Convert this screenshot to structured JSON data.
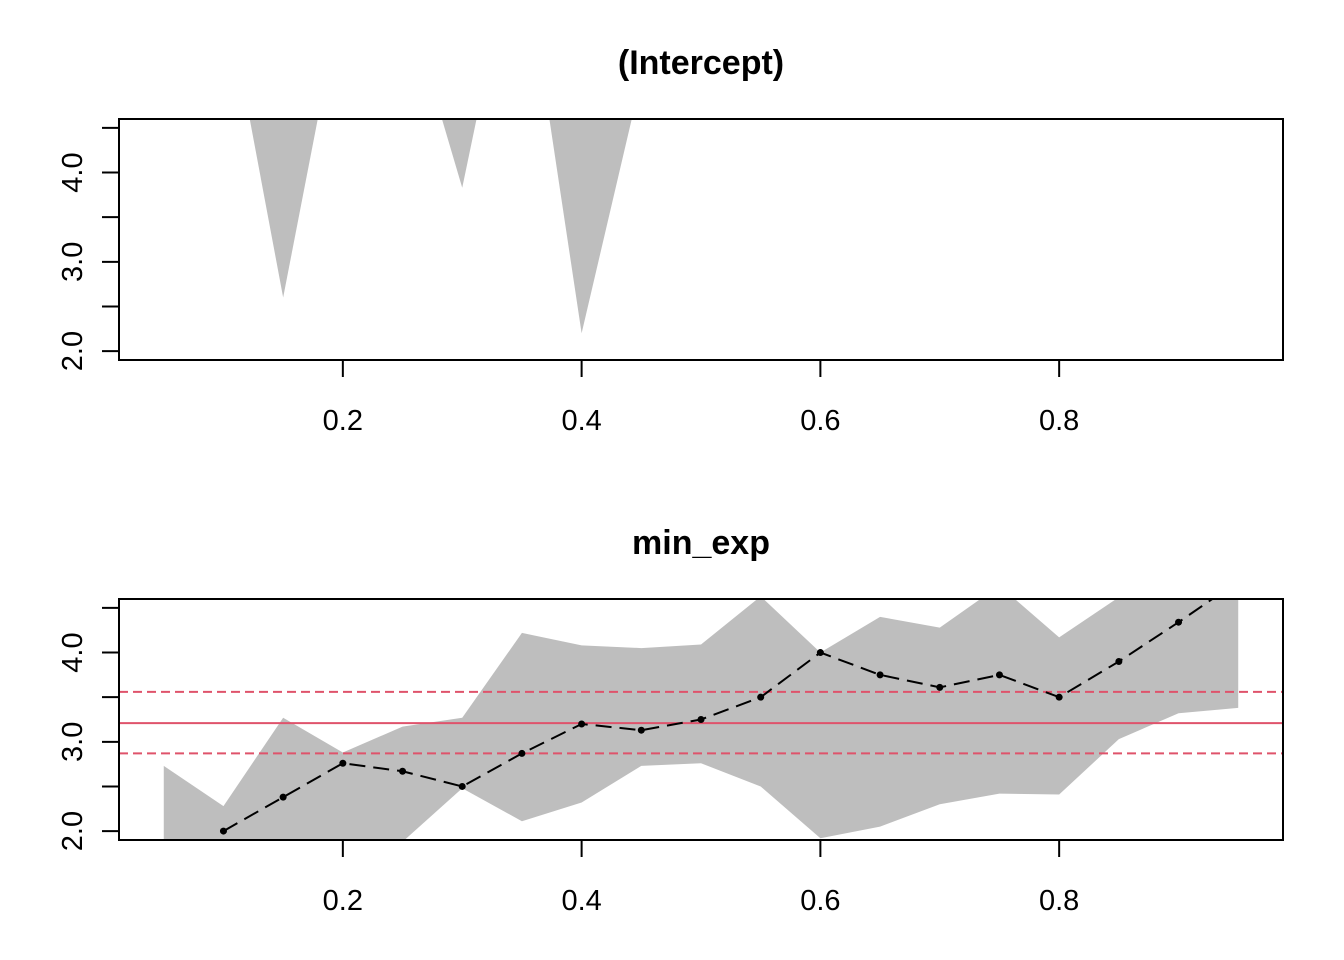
{
  "chart_data": [
    {
      "type": "area",
      "title": "(Intercept)",
      "xlabel": "",
      "ylabel": "",
      "xlim": [
        0.0125,
        0.9875
      ],
      "ylim": [
        1.9,
        4.6
      ],
      "x_ticks": [
        0.2,
        0.4,
        0.6,
        0.8
      ],
      "x_tick_labels": [
        "0.2",
        "0.4",
        "0.6",
        "0.8"
      ],
      "y_ticks": [
        2.0,
        2.5,
        3.0,
        3.5,
        4.0,
        4.5
      ],
      "y_tick_labels": [
        "2.0",
        "",
        "3.0",
        "",
        "4.0",
        ""
      ],
      "grid": false,
      "band_color": "#bebebe",
      "bands": [
        [
          [
            0.122,
            4.6
          ],
          [
            0.15,
            2.6
          ],
          [
            0.179,
            4.6
          ]
        ],
        [
          [
            0.283,
            4.6
          ],
          [
            0.3,
            3.83
          ],
          [
            0.312,
            4.6
          ]
        ],
        [
          [
            0.373,
            4.6
          ],
          [
            0.4,
            2.2
          ],
          [
            0.442,
            4.6
          ]
        ]
      ]
    },
    {
      "type": "line",
      "title": "min_exp",
      "xlabel": "",
      "ylabel": "",
      "xlim": [
        0.0125,
        0.9875
      ],
      "ylim": [
        1.9,
        4.6
      ],
      "x_ticks": [
        0.2,
        0.4,
        0.6,
        0.8
      ],
      "x_tick_labels": [
        "0.2",
        "0.4",
        "0.6",
        "0.8"
      ],
      "y_ticks": [
        2.0,
        2.5,
        3.0,
        3.5,
        4.0,
        4.5
      ],
      "y_tick_labels": [
        "2.0",
        "",
        "3.0",
        "",
        "4.0",
        ""
      ],
      "grid": false,
      "band_color": "#bebebe",
      "series": [
        {
          "x": [
            0.1,
            0.15,
            0.2,
            0.25,
            0.3,
            0.35,
            0.4,
            0.45,
            0.5,
            0.55,
            0.6,
            0.65,
            0.7,
            0.75,
            0.8,
            0.85,
            0.9,
            0.95
          ],
          "y": [
            2.0,
            2.38,
            2.76,
            2.67,
            2.5,
            2.87,
            3.2,
            3.13,
            3.25,
            3.5,
            4.0,
            3.75,
            3.61,
            3.75,
            3.5,
            3.9,
            4.34,
            4.8
          ]
        }
      ],
      "band_upper": {
        "x": [
          0.05,
          0.1,
          0.15,
          0.2,
          0.25,
          0.3,
          0.35,
          0.4,
          0.45,
          0.5,
          0.55,
          0.6,
          0.65,
          0.7,
          0.75,
          0.8,
          0.85,
          0.9,
          0.95
        ],
        "y": [
          2.73,
          2.28,
          3.27,
          2.88,
          3.17,
          3.27,
          4.22,
          4.08,
          4.05,
          4.09,
          4.63,
          4.0,
          4.4,
          4.28,
          4.75,
          4.17,
          4.62,
          4.65,
          4.62
        ]
      },
      "band_lower": {
        "x": [
          0.05,
          0.1,
          0.15,
          0.2,
          0.25,
          0.3,
          0.35,
          0.4,
          0.45,
          0.5,
          0.55,
          0.6,
          0.65,
          0.7,
          0.75,
          0.8,
          0.85,
          0.9,
          0.95
        ],
        "y": [
          1.85,
          1.8,
          1.85,
          1.85,
          1.88,
          2.48,
          2.11,
          2.32,
          2.73,
          2.76,
          2.5,
          1.92,
          2.05,
          2.3,
          2.42,
          2.41,
          3.03,
          3.32,
          3.38
        ]
      },
      "hlines": [
        {
          "y": 3.21,
          "style": "solid",
          "color": "#DF536B"
        },
        {
          "y": 3.56,
          "style": "dashed",
          "color": "#DF536B"
        },
        {
          "y": 2.87,
          "style": "dashed",
          "color": "#DF536B"
        }
      ]
    }
  ]
}
